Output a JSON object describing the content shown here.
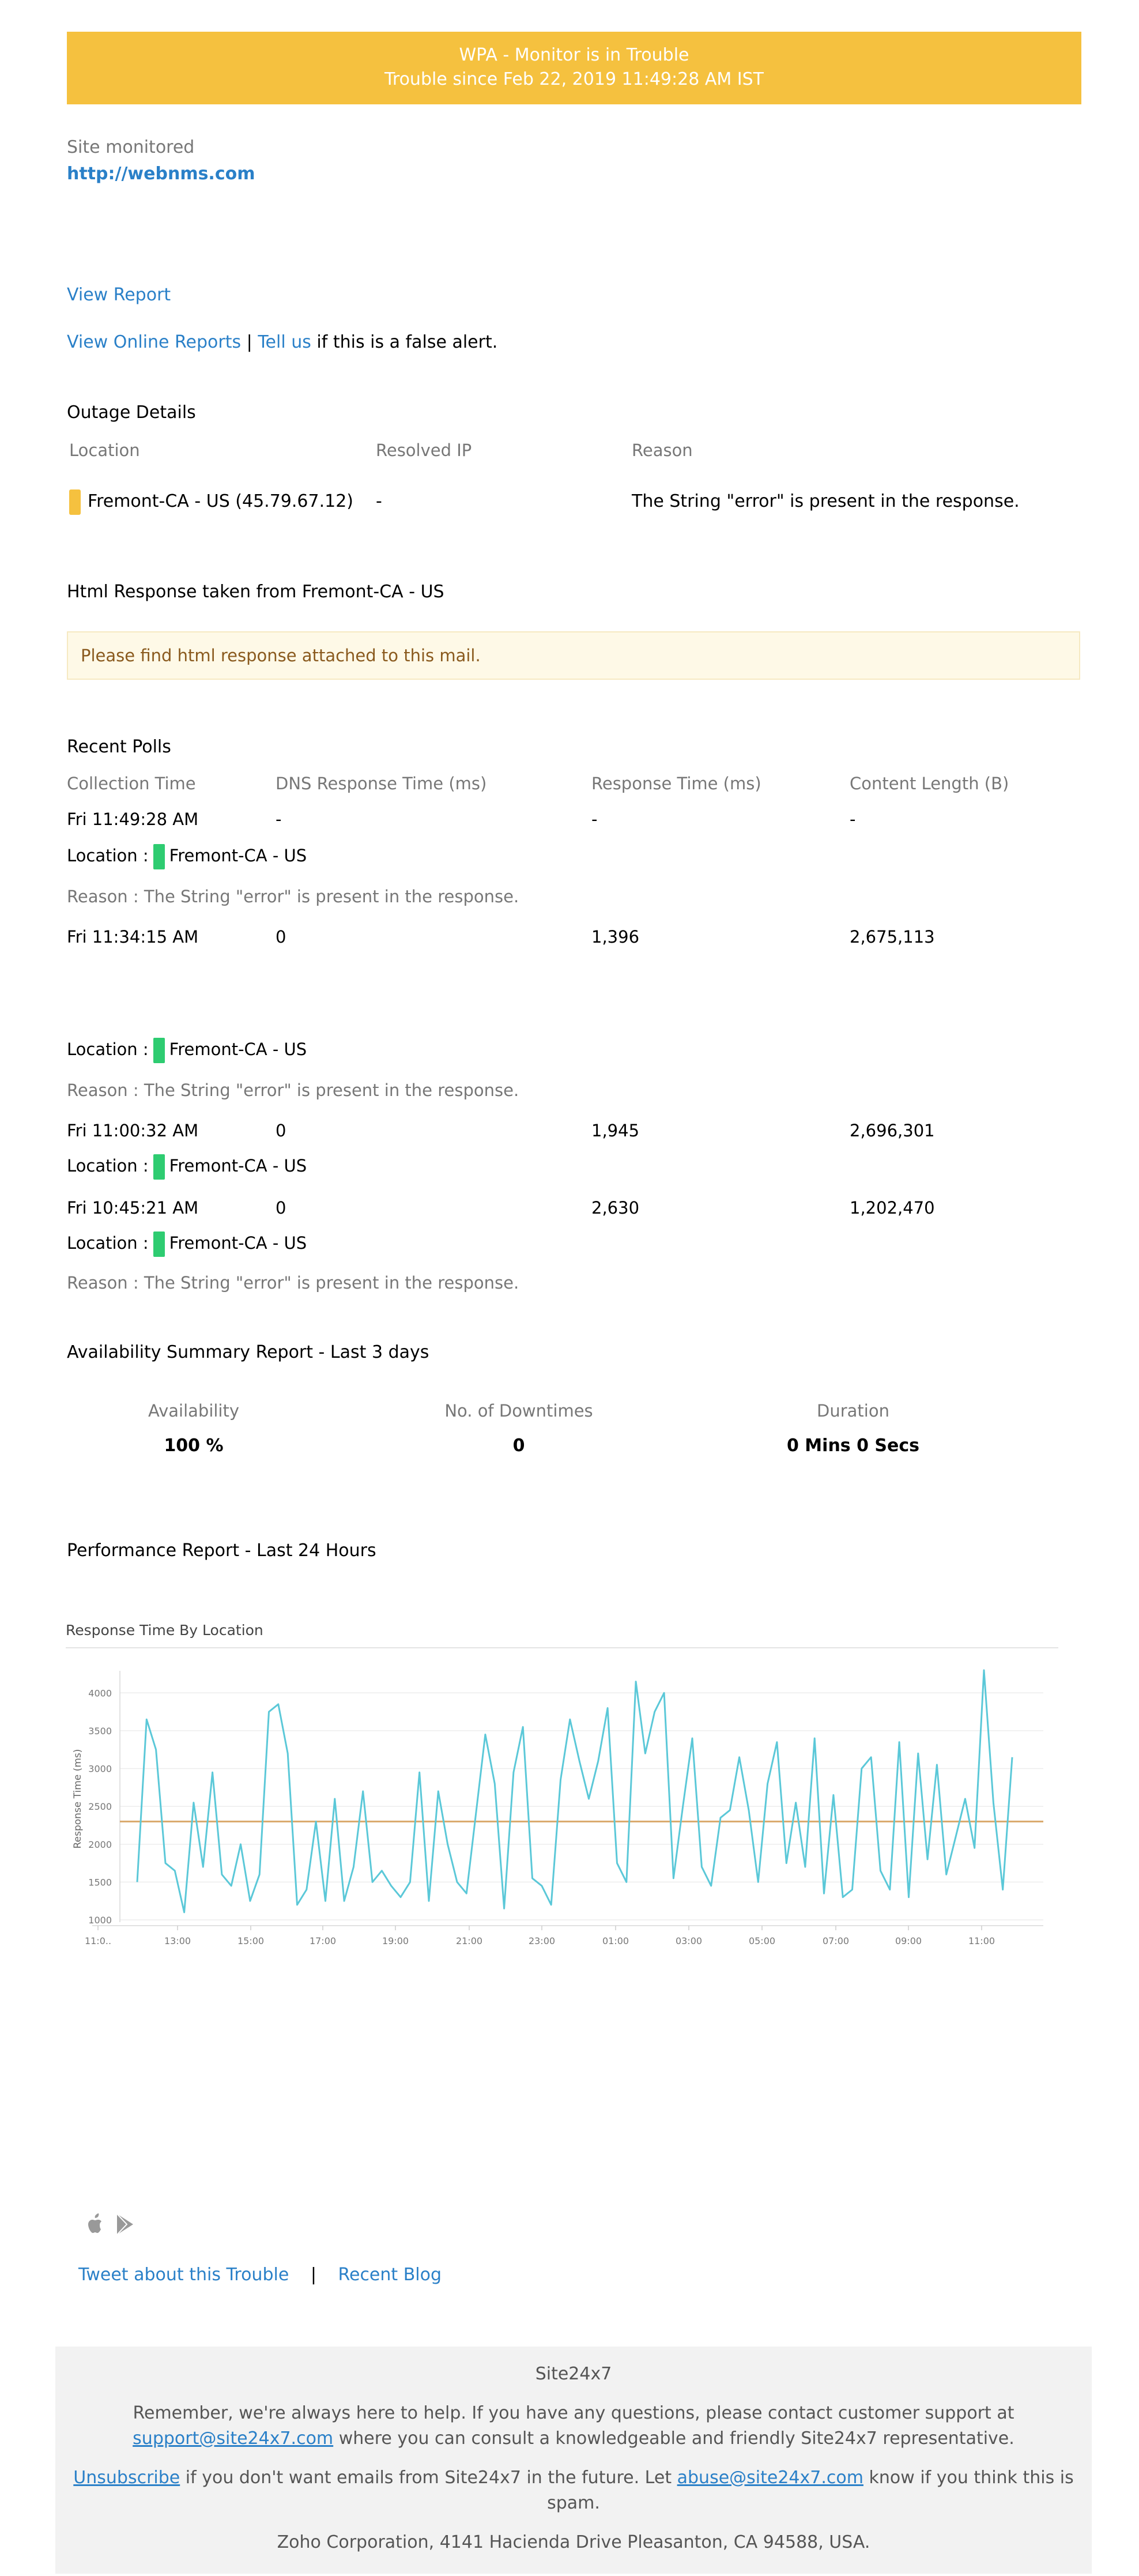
{
  "banner": {
    "title": "WPA - Monitor is in Trouble",
    "subtitle": "Trouble since Feb 22, 2019 11:49:28 AM IST",
    "color": "#f5c13f"
  },
  "site": {
    "label": "Site monitored",
    "url": "http://webnms.com"
  },
  "links": {
    "view_report": "View Report",
    "view_online_reports": "View Online Reports",
    "separator": "|",
    "tell_us": "Tell us",
    "false_alert": "if this is a false alert."
  },
  "outage": {
    "heading": "Outage Details",
    "columns": [
      "Location",
      "Resolved IP",
      "Reason"
    ],
    "row": {
      "location": "Fremont-CA - US (45.79.67.12)",
      "ip": "-",
      "reason": "The String \"error\" is present in the response.",
      "status_color": "#f5c13f"
    }
  },
  "html_response": {
    "heading": "Html Response taken from Fremont-CA - US",
    "notice": "Please find html response attached to this mail."
  },
  "recent_polls": {
    "heading": "Recent Polls",
    "columns": [
      "Collection Time",
      "DNS Response Time (ms)",
      "Response Time (ms)",
      "Content Length (B)"
    ],
    "location_label": "Location :",
    "location_name": "Fremont-CA - US",
    "reason_text": "Reason : The String \"error\" is present in the response.",
    "rows": [
      {
        "time": "Fri 11:49:28 AM",
        "dns": "-",
        "response": "-",
        "length": "-"
      },
      {
        "time": "Fri 11:34:15 AM",
        "dns": "0",
        "response": "1,396",
        "length": "2,675,113"
      },
      {
        "time": "Fri 11:00:32 AM",
        "dns": "0",
        "response": "1,945",
        "length": "2,696,301"
      },
      {
        "time": "Fri 10:45:21 AM",
        "dns": "0",
        "response": "2,630",
        "length": "1,202,470"
      }
    ]
  },
  "availability": {
    "heading": "Availability Summary Report - Last 3 days",
    "columns": [
      "Availability",
      "No. of Downtimes",
      "Duration"
    ],
    "values": [
      "100 %",
      "0",
      "0 Mins 0 Secs"
    ]
  },
  "performance": {
    "heading": "Performance Report - Last 24 Hours"
  },
  "chart_data": {
    "type": "line",
    "title": "Response Time By Location",
    "xlabel": "",
    "ylabel": "Response Time (ms)",
    "ylim": [
      1000,
      4200
    ],
    "yticks": [
      1000,
      1500,
      2000,
      2500,
      3000,
      3500,
      4000
    ],
    "xticks": [
      "11:0..",
      "13:00",
      "15:00",
      "17:00",
      "19:00",
      "21:00",
      "23:00",
      "01:00",
      "03:00",
      "05:00",
      "07:00",
      "09:00",
      "11:00"
    ],
    "average_line": 2300,
    "series": [
      {
        "color": "#5bc8d8",
        "values": [
          1500,
          3650,
          3250,
          1750,
          1650,
          1100,
          2550,
          1700,
          2950,
          1600,
          1450,
          2000,
          1250,
          1600,
          3750,
          3850,
          3200,
          1200,
          1400,
          2300,
          1250,
          2600,
          1250,
          1700,
          2700,
          1500,
          1650,
          1450,
          1300,
          1500,
          2950,
          1250,
          2700,
          2000,
          1500,
          1350,
          2400,
          3450,
          2800,
          1150,
          2950,
          3550,
          1550,
          1450,
          1200,
          2850,
          3650,
          3100,
          2600,
          3100,
          3800,
          1750,
          1500,
          4150,
          3200,
          3750,
          4000,
          1550,
          2500,
          3400,
          1700,
          1450,
          2350,
          2450,
          3150,
          2450,
          1500,
          2800,
          3350,
          1750,
          2550,
          1700,
          3400,
          1350,
          2650,
          1300,
          1400,
          3000,
          3150,
          1650,
          1400,
          3350,
          1300,
          3200,
          1800,
          3050,
          1600,
          2100,
          2600,
          1950,
          4300,
          2550,
          1400,
          3150
        ]
      }
    ],
    "average_color": "#d9a86b"
  },
  "social": {
    "tweet": "Tweet about this Trouble",
    "separator": "|",
    "blog": "Recent Blog"
  },
  "footer": {
    "brand": "Site24x7",
    "help_text_1": "Remember, we're always here to help. If you have any questions, please contact customer support at",
    "support_email": "support@site24x7.com",
    "help_text_2": "where you can consult a knowledgeable and friendly Site24x7 representative.",
    "unsubscribe": "Unsubscribe",
    "unsub_text_1": "if you don't want emails from Site24x7 in the future. Let",
    "abuse_email": "abuse@site24x7.com",
    "unsub_text_2": "know if you think this is",
    "unsub_text_3": "spam.",
    "address": "Zoho Corporation, 4141 Hacienda Drive Pleasanton, CA 94588, USA."
  }
}
